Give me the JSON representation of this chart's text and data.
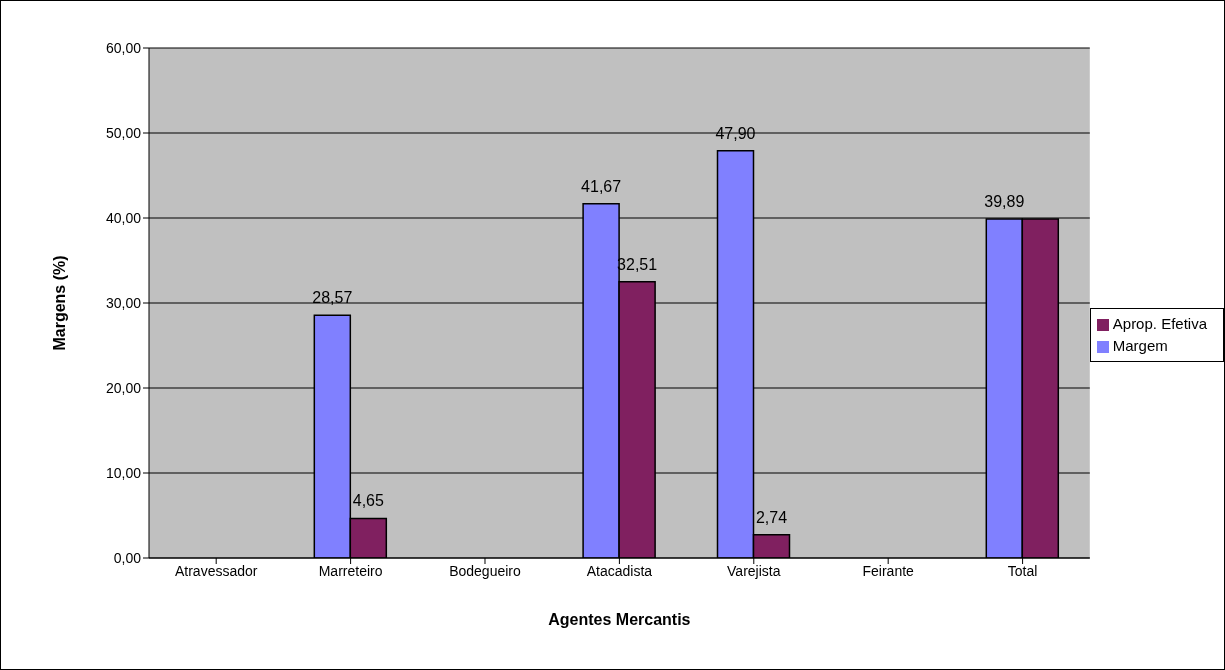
{
  "chart_data": {
    "type": "bar",
    "xlabel": "Agentes Mercantis",
    "ylabel": "Margens (%)",
    "categories": [
      "Atravessador",
      "Marreteiro",
      "Bodegueiro",
      "Atacadista",
      "Varejista",
      "Feirante",
      "Total"
    ],
    "series": [
      {
        "name": "Margem",
        "color": "#8080ff",
        "values": [
          null,
          28.57,
          null,
          41.67,
          47.9,
          null,
          39.89
        ],
        "value_labels": [
          null,
          "28,57",
          null,
          "41,67",
          "47,90",
          null,
          "39,89"
        ]
      },
      {
        "name": "Aprop. Efetiva",
        "color": "#802060",
        "values": [
          null,
          4.65,
          null,
          32.51,
          2.74,
          null,
          39.89
        ],
        "value_labels": [
          null,
          "4,65",
          null,
          "32,51",
          "2,74",
          null,
          null
        ]
      }
    ],
    "ylim": [
      0,
      60
    ],
    "yticks": [
      {
        "value": 0,
        "label": "0,00"
      },
      {
        "value": 10,
        "label": "10,00"
      },
      {
        "value": 20,
        "label": "20,00"
      },
      {
        "value": 30,
        "label": "30,00"
      },
      {
        "value": 40,
        "label": "40,00"
      },
      {
        "value": 50,
        "label": "50,00"
      },
      {
        "value": 60,
        "label": "60,00"
      }
    ],
    "grid": "y",
    "legend": "right"
  }
}
